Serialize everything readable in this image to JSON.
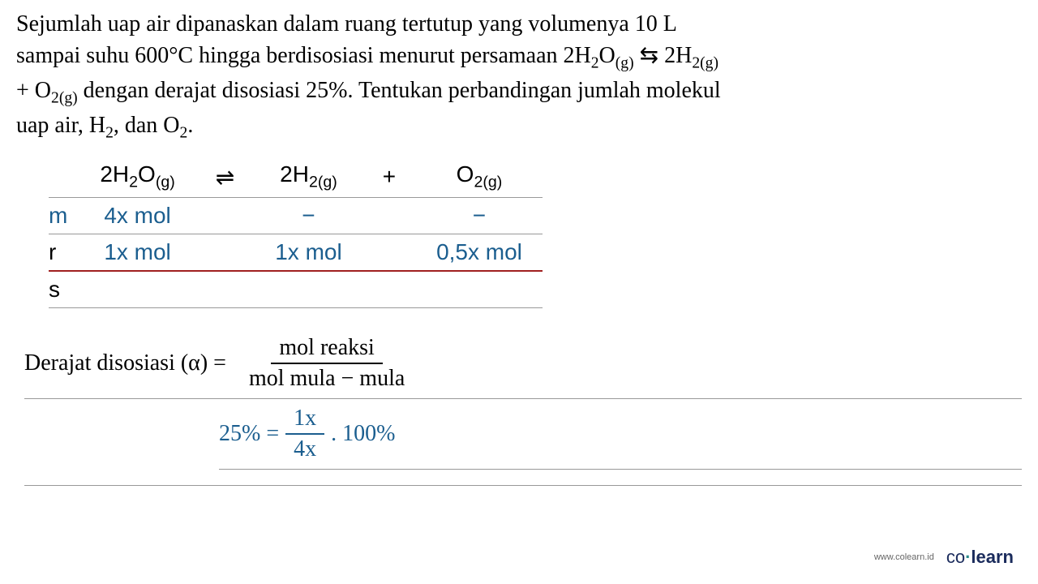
{
  "question": {
    "line1_part1": "Sejumlah uap air dipanaskan dalam ruang tertutup yang volumenya 10 L",
    "line2_part1": "sampai suhu 600°C hingga berdisosiasi menurut persamaan 2H",
    "line2_sub1": "2",
    "line2_part2": "O",
    "line2_sub2": "(g)",
    "line2_arrow": " ⇆ ",
    "line2_part3": "2H",
    "line2_sub3": "2(g)",
    "line3_part1": "+ O",
    "line3_sub1": "2(g)",
    "line3_part2": " dengan derajat disosiasi 25%. Tentukan perbandingan jumlah molekul",
    "line4_part1": "uap air, H",
    "line4_sub1": "2",
    "line4_part2": ", dan O",
    "line4_sub2": "2",
    "line4_part3": "."
  },
  "table": {
    "header": {
      "col1_a": "2H",
      "col1_sub1": "2",
      "col1_b": "O",
      "col1_sub2": "(g)",
      "arrow": "⇌",
      "col2_a": "2H",
      "col2_sub": "2(g)",
      "plus": "+",
      "col3_a": "O",
      "col3_sub": "2(g)"
    },
    "row_m": {
      "label": "m",
      "col1": "4x mol",
      "col2": "−",
      "col3": "−"
    },
    "row_r": {
      "label": "r",
      "col1": "1x mol",
      "col2": "1x mol",
      "col3": "0,5x mol"
    },
    "row_s": {
      "label": "s"
    }
  },
  "formula": {
    "label": "Derajat disosiasi (α) = ",
    "numerator": "mol reaksi",
    "denominator": "mol mula − mula",
    "pct_label": "25% = ",
    "frac_num": "1x",
    "frac_den": "4x",
    "mult": " . 100%"
  },
  "footer": {
    "url": "www.colearn.id",
    "logo_co": "co",
    "logo_dot": "·",
    "logo_learn": "learn"
  },
  "colors": {
    "data_blue": "#1b5e8f",
    "line_red": "#a02020",
    "logo_dark": "#1a2b5c",
    "logo_teal": "#2a8b8b"
  }
}
